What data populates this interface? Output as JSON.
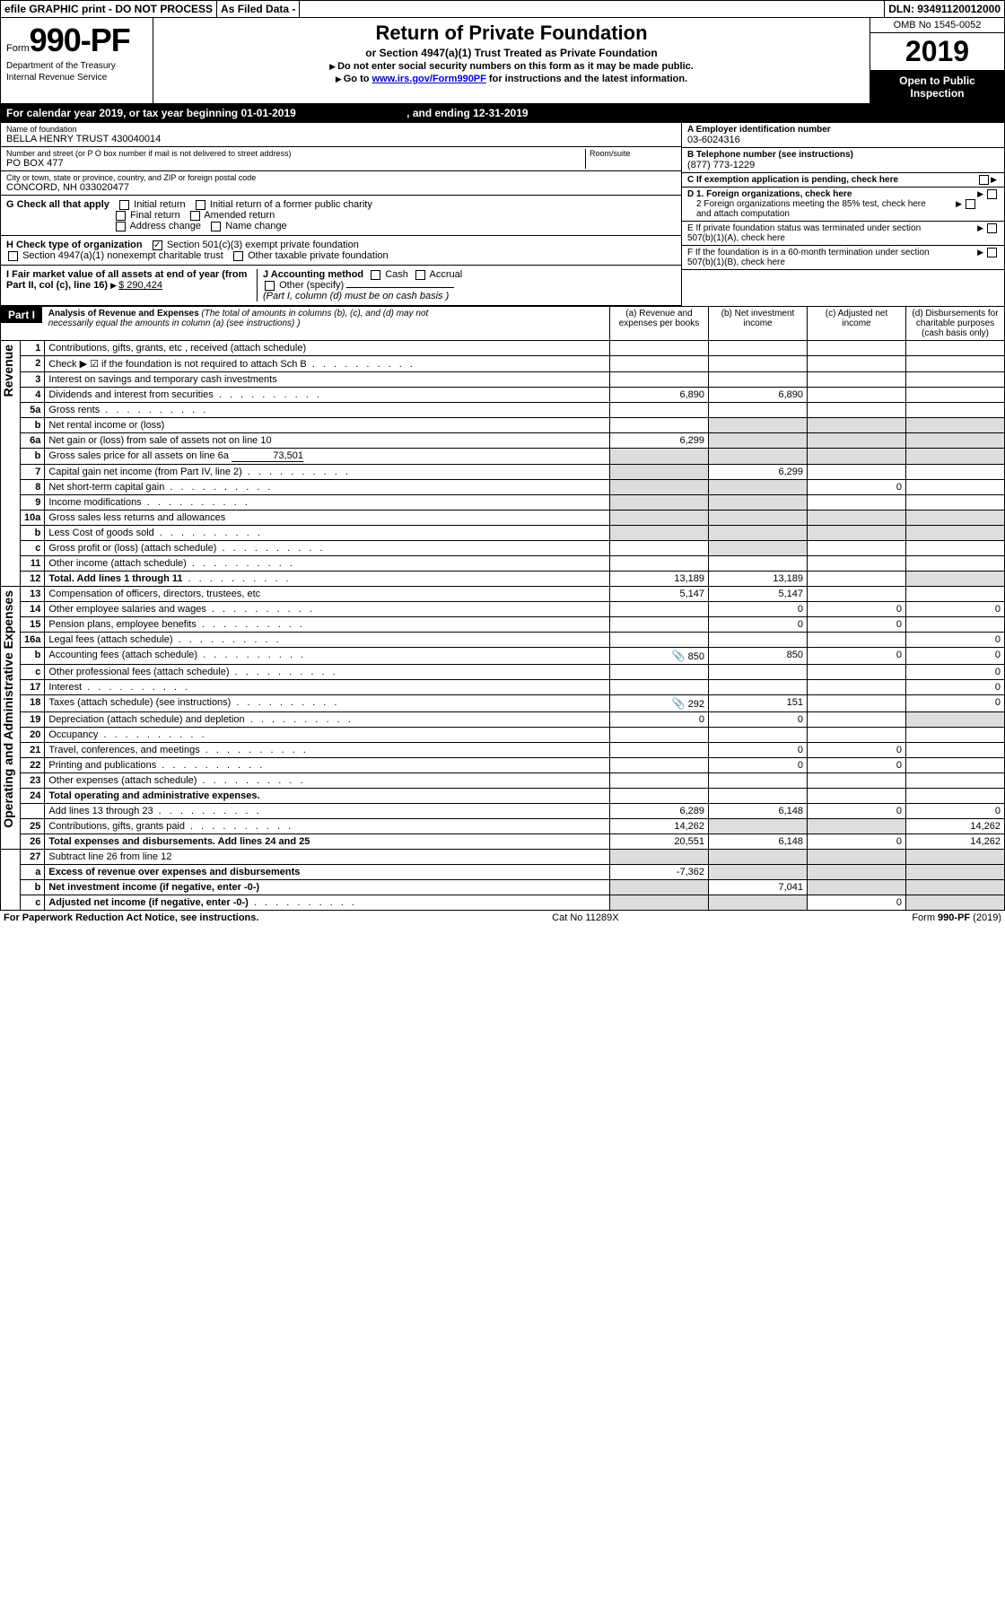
{
  "topbar": {
    "efile": "efile GRAPHIC print - DO NOT PROCESS",
    "asfiled": "As Filed Data -",
    "dln": "DLN: 93491120012000"
  },
  "header": {
    "form_prefix": "Form",
    "form_num": "990-PF",
    "dept1": "Department of the Treasury",
    "dept2": "Internal Revenue Service",
    "title": "Return of Private Foundation",
    "subtitle": "or Section 4947(a)(1) Trust Treated as Private Foundation",
    "note1": "Do not enter social security numbers on this form as it may be made public.",
    "note2_pre": "Go to ",
    "note2_link": "www.irs.gov/Form990PF",
    "note2_post": " for instructions and the latest information.",
    "omb": "OMB No 1545-0052",
    "year": "2019",
    "open": "Open to Public Inspection"
  },
  "calyear": {
    "text1": "For calendar year 2019, or tax year beginning 01-01-2019",
    "text2": ", and ending 12-31-2019"
  },
  "info": {
    "name_label": "Name of foundation",
    "name": "BELLA HENRY TRUST 430040014",
    "addr_label": "Number and street (or P O  box number if mail is not delivered to street address)",
    "addr": "PO BOX 477",
    "room_label": "Room/suite",
    "city_label": "City or town, state or province, country, and ZIP or foreign postal code",
    "city": "CONCORD, NH  033020477",
    "a_label": "A Employer identification number",
    "a_val": "03-6024316",
    "b_label": "B Telephone number (see instructions)",
    "b_val": "(877) 773-1229",
    "c_label": "C If exemption application is pending, check here",
    "g_label": "G Check all that apply",
    "g_opts": [
      "Initial return",
      "Initial return of a former public charity",
      "Final return",
      "Amended return",
      "Address change",
      "Name change"
    ],
    "d1": "D 1. Foreign organizations, check here",
    "d2": "2 Foreign organizations meeting the 85% test, check here and attach computation",
    "e": "E  If private foundation status was terminated under section 507(b)(1)(A), check here",
    "h_label": "H Check type of organization",
    "h_opt1": "Section 501(c)(3) exempt private foundation",
    "h_opt2": "Section 4947(a)(1) nonexempt charitable trust",
    "h_opt3": "Other taxable private foundation",
    "i_label": "I Fair market value of all assets at end of year (from Part II, col  (c), line 16)",
    "i_val": "$  290,424",
    "j_label": "J Accounting method",
    "j_cash": "Cash",
    "j_accrual": "Accrual",
    "j_other": "Other (specify)",
    "j_note": "(Part I, column (d) must be on cash basis )",
    "f": "F  If the foundation is in a 60-month termination under section 507(b)(1)(B), check here"
  },
  "part1": {
    "label": "Part I",
    "title": "Analysis of Revenue and Expenses",
    "title_note": "(The total of amounts in columns (b), (c), and (d) may not necessarily equal the amounts in column (a) (see instructions) )",
    "col_a": "(a) Revenue and expenses per books",
    "col_b": "(b) Net investment income",
    "col_c": "(c) Adjusted net income",
    "col_d": "(d) Disbursements for charitable purposes (cash basis only)",
    "rev_label": "Revenue",
    "exp_label": "Operating and Administrative Expenses",
    "rows": [
      {
        "n": "1",
        "desc": "Contributions, gifts, grants, etc , received (attach schedule)"
      },
      {
        "n": "2",
        "desc": "Check ▶ ☑ if the foundation is not required to attach Sch B",
        "dots": true
      },
      {
        "n": "3",
        "desc": "Interest on savings and temporary cash investments"
      },
      {
        "n": "4",
        "desc": "Dividends and interest from securities",
        "a": "6,890",
        "b": "6,890",
        "dots": true
      },
      {
        "n": "5a",
        "desc": "Gross rents",
        "dots": true
      },
      {
        "n": "b",
        "desc": "Net rental income or (loss)",
        "shade_bcd": true
      },
      {
        "n": "6a",
        "desc": "Net gain or (loss) from sale of assets not on line 10",
        "a": "6,299",
        "shade_bcd": true
      },
      {
        "n": "b",
        "desc": "Gross sales price for all assets on line 6a",
        "extra": "73,501",
        "shade_all": true
      },
      {
        "n": "7",
        "desc": "Capital gain net income (from Part IV, line 2)",
        "b": "6,299",
        "dots": true,
        "shade_a": true
      },
      {
        "n": "8",
        "desc": "Net short-term capital gain",
        "c": "0",
        "dots": true,
        "shade_ab": true
      },
      {
        "n": "9",
        "desc": "Income modifications",
        "dots": true,
        "shade_ab": true
      },
      {
        "n": "10a",
        "desc": "Gross sales less returns and allowances",
        "shade_all": true
      },
      {
        "n": "b",
        "desc": "Less  Cost of goods sold",
        "dots": true,
        "shade_all": true
      },
      {
        "n": "c",
        "desc": "Gross profit or (loss) (attach schedule)",
        "dots": true,
        "shade_b": true
      },
      {
        "n": "11",
        "desc": "Other income (attach schedule)",
        "dots": true
      },
      {
        "n": "12",
        "desc": "Total. Add lines 1 through 11",
        "a": "13,189",
        "b": "13,189",
        "dots": true,
        "bold": true,
        "shade_d": true
      }
    ],
    "exp_rows": [
      {
        "n": "13",
        "desc": "Compensation of officers, directors, trustees, etc",
        "a": "5,147",
        "b": "5,147"
      },
      {
        "n": "14",
        "desc": "Other employee salaries and wages",
        "b": "0",
        "c": "0",
        "d": "0",
        "dots": true
      },
      {
        "n": "15",
        "desc": "Pension plans, employee benefits",
        "b": "0",
        "c": "0",
        "dots": true
      },
      {
        "n": "16a",
        "desc": "Legal fees (attach schedule)",
        "d": "0",
        "dots": true
      },
      {
        "n": "b",
        "desc": "Accounting fees (attach schedule)",
        "a": "850",
        "b": "850",
        "c": "0",
        "d": "0",
        "icon": true,
        "dots": true
      },
      {
        "n": "c",
        "desc": "Other professional fees (attach schedule)",
        "d": "0",
        "dots": true
      },
      {
        "n": "17",
        "desc": "Interest",
        "d": "0",
        "dots": true
      },
      {
        "n": "18",
        "desc": "Taxes (attach schedule) (see instructions)",
        "a": "292",
        "b": "151",
        "d": "0",
        "icon": true,
        "dots": true
      },
      {
        "n": "19",
        "desc": "Depreciation (attach schedule) and depletion",
        "a": "0",
        "b": "0",
        "dots": true,
        "shade_d": true
      },
      {
        "n": "20",
        "desc": "Occupancy",
        "dots": true
      },
      {
        "n": "21",
        "desc": "Travel, conferences, and meetings",
        "b": "0",
        "c": "0",
        "dots": true
      },
      {
        "n": "22",
        "desc": "Printing and publications",
        "b": "0",
        "c": "0",
        "dots": true
      },
      {
        "n": "23",
        "desc": "Other expenses (attach schedule)",
        "dots": true
      },
      {
        "n": "24",
        "desc": "Total operating and administrative expenses.",
        "bold": true
      },
      {
        "n": "",
        "desc": "Add lines 13 through 23",
        "a": "6,289",
        "b": "6,148",
        "c": "0",
        "d": "0",
        "dots": true
      },
      {
        "n": "25",
        "desc": "Contributions, gifts, grants paid",
        "a": "14,262",
        "d": "14,262",
        "dots": true,
        "shade_bc": true
      },
      {
        "n": "26",
        "desc": "Total expenses and disbursements. Add lines 24 and 25",
        "a": "20,551",
        "b": "6,148",
        "c": "0",
        "d": "14,262",
        "bold": true
      }
    ],
    "net_rows": [
      {
        "n": "27",
        "desc": "Subtract line 26 from line 12",
        "shade_all": true
      },
      {
        "n": "a",
        "desc": "Excess of revenue over expenses and disbursements",
        "a": "-7,362",
        "bold": true,
        "shade_bcd": true
      },
      {
        "n": "b",
        "desc": "Net investment income (if negative, enter -0-)",
        "b": "7,041",
        "bold": true,
        "shade_a": true,
        "shade_cd": true
      },
      {
        "n": "c",
        "desc": "Adjusted net income (if negative, enter -0-)",
        "c": "0",
        "bold": true,
        "dots": true,
        "shade_ab": true,
        "shade_d": true
      }
    ]
  },
  "footer": {
    "left": "For Paperwork Reduction Act Notice, see instructions.",
    "center": "Cat  No  11289X",
    "right": "Form 990-PF (2019)"
  }
}
